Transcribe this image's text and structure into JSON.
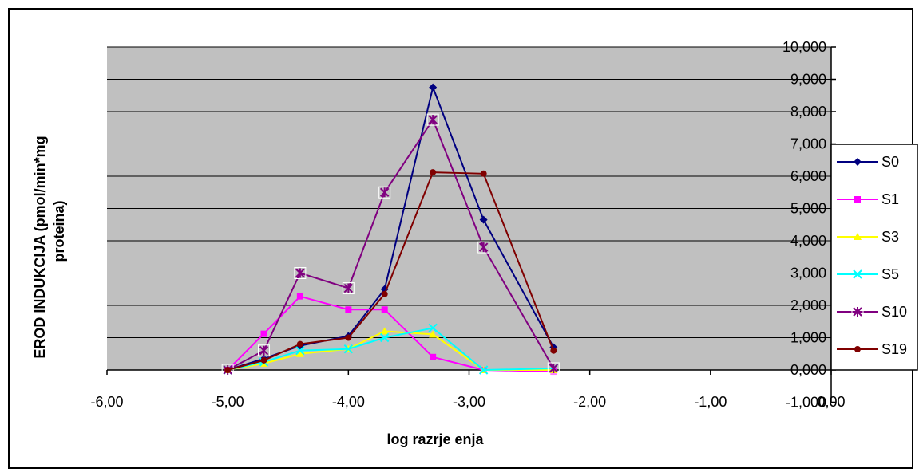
{
  "chart_data": {
    "type": "line",
    "title": "",
    "xlabel": "log razrje  enja",
    "ylabel_line1": "EROD INDUKCIJA (pmol/min*mg",
    "ylabel_line2": "proteina)",
    "xlim": [
      -6,
      0
    ],
    "ylim": [
      -1,
      10
    ],
    "x_tick_labels": [
      "-6,00",
      "-5,00",
      "-4,00",
      "-3,00",
      "-2,00",
      "-1,00",
      "0,00"
    ],
    "y_tick_labels": [
      "-1,000",
      "0,000",
      "1,000",
      "2,000",
      "3,000",
      "4,000",
      "5,000",
      "6,000",
      "7,000",
      "8,000",
      "9,000",
      "10,000"
    ],
    "grid": true,
    "plot_background": "#c0c0c0",
    "legend_position": "right",
    "series": [
      {
        "name": "S0",
        "color": "#000080",
        "marker": "diamond",
        "points": [
          [
            -5.0,
            0.0
          ],
          [
            -4.7,
            0.35
          ],
          [
            -4.4,
            0.75
          ],
          [
            -4.0,
            1.05
          ],
          [
            -3.7,
            2.5
          ],
          [
            -3.3,
            8.75
          ],
          [
            -2.88,
            4.65
          ],
          [
            -2.3,
            0.7
          ]
        ]
      },
      {
        "name": "S1",
        "color": "#ff00ff",
        "marker": "square",
        "points": [
          [
            -5.0,
            0.0
          ],
          [
            -4.7,
            1.12
          ],
          [
            -4.4,
            2.28
          ],
          [
            -4.0,
            1.87
          ],
          [
            -3.7,
            1.87
          ],
          [
            -3.3,
            0.4
          ],
          [
            -2.88,
            0.0
          ],
          [
            -2.3,
            -0.05
          ]
        ]
      },
      {
        "name": "S3",
        "color": "#ffff00",
        "marker": "triangle",
        "points": [
          [
            -5.0,
            0.0
          ],
          [
            -4.7,
            0.2
          ],
          [
            -4.4,
            0.5
          ],
          [
            -4.0,
            0.65
          ],
          [
            -3.7,
            1.2
          ],
          [
            -3.3,
            1.1
          ],
          [
            -2.88,
            0.0
          ],
          [
            -2.3,
            0.0
          ]
        ]
      },
      {
        "name": "S5",
        "color": "#00ffff",
        "marker": "x",
        "points": [
          [
            -5.0,
            0.0
          ],
          [
            -4.7,
            0.25
          ],
          [
            -4.4,
            0.6
          ],
          [
            -4.0,
            0.65
          ],
          [
            -3.7,
            1.0
          ],
          [
            -3.3,
            1.3
          ],
          [
            -2.88,
            0.0
          ],
          [
            -2.3,
            0.05
          ]
        ]
      },
      {
        "name": "S10",
        "color": "#800080",
        "marker": "star",
        "points": [
          [
            -5.0,
            0.0
          ],
          [
            -4.7,
            0.6
          ],
          [
            -4.4,
            3.0
          ],
          [
            -4.0,
            2.53
          ],
          [
            -3.7,
            5.5
          ],
          [
            -3.3,
            7.75
          ],
          [
            -2.88,
            3.8
          ],
          [
            -2.3,
            0.05
          ]
        ]
      },
      {
        "name": "S19",
        "color": "#800000",
        "marker": "circle",
        "points": [
          [
            -5.0,
            0.0
          ],
          [
            -4.7,
            0.3
          ],
          [
            -4.4,
            0.8
          ],
          [
            -4.0,
            1.0
          ],
          [
            -3.7,
            2.35
          ],
          [
            -3.3,
            6.12
          ],
          [
            -2.88,
            6.08
          ],
          [
            -2.3,
            0.6
          ]
        ]
      }
    ]
  }
}
